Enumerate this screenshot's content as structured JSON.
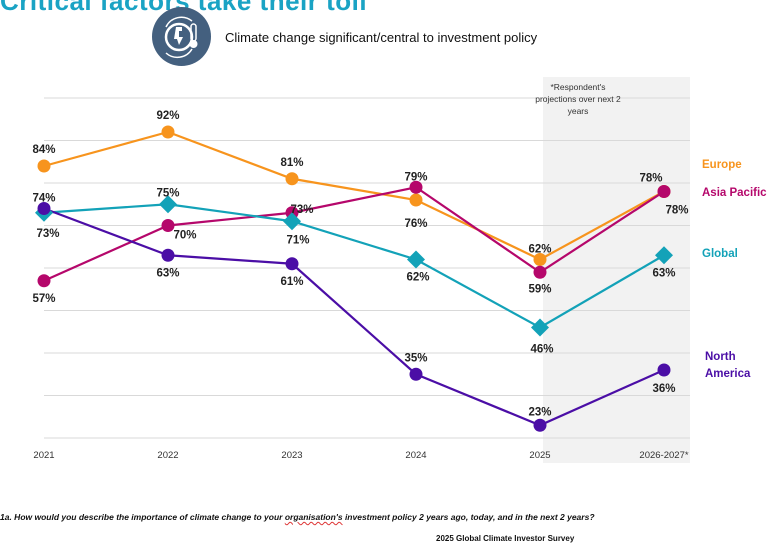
{
  "header": {
    "partial_heading": "Critical factors take their toll",
    "icon": "climate-thermometer-icon",
    "icon_color": "#44607f",
    "chart_title": "Climate change significant/central to investment policy"
  },
  "annotation": {
    "projection_note": "*Respondent's projections over next 2 years"
  },
  "footnote": {
    "prefix": "1a. How would you describe the importance of climate change to your ",
    "underlined": "organisation's",
    "suffix": " investment policy 2 years ago, today, and in the next 2 years?",
    "source": "2025 Global Climate Investor Survey"
  },
  "chart_data": {
    "type": "line",
    "title": "Climate change significant/central to investment policy",
    "xlabel": "",
    "ylabel": "",
    "categories": [
      "2021",
      "2022",
      "2023",
      "2024",
      "2025",
      "2026-2027*"
    ],
    "ylim": [
      20,
      100
    ],
    "grid": true,
    "projection_shaded_from": "2025",
    "legend_placement": "right (labels at line ends)",
    "series": [
      {
        "name": "Europe",
        "color": "#f7941d",
        "marker": "circle",
        "values": [
          84,
          92,
          81,
          76,
          62,
          78
        ]
      },
      {
        "name": "Asia Pacific",
        "color": "#b5076b",
        "marker": "circle",
        "values": [
          57,
          70,
          73,
          79,
          59,
          78
        ]
      },
      {
        "name": "Global",
        "color": "#13a2b8",
        "marker": "diamond",
        "values": [
          73,
          75,
          71,
          62,
          46,
          63
        ]
      },
      {
        "name": "North America",
        "color": "#4b0ea6",
        "marker": "circle",
        "values": [
          74,
          63,
          61,
          35,
          23,
          36
        ]
      }
    ],
    "data_labels": [
      {
        "series": 0,
        "labels": [
          "84%",
          "92%",
          "81%",
          "76%",
          "62%",
          "78%"
        ]
      },
      {
        "series": 1,
        "labels": [
          "57%",
          "70%",
          "73%",
          "79%",
          "59%",
          "78%"
        ]
      },
      {
        "series": 2,
        "labels": [
          "73%",
          "75%",
          "71%",
          "62%",
          "46%",
          "63%"
        ]
      },
      {
        "series": 3,
        "labels": [
          "74%",
          "63%",
          "61%",
          "35%",
          "23%",
          "36%"
        ]
      }
    ]
  }
}
